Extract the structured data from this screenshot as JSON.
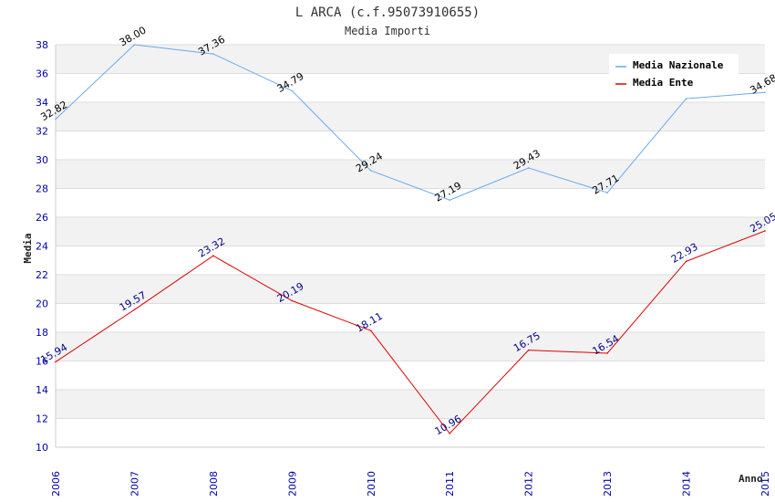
{
  "chart_data": {
    "type": "line",
    "title": "L ARCA (c.f.95073910655)",
    "subtitle": "Media Importi",
    "xlabel": "Anno",
    "ylabel": "Media",
    "categories": [
      "2006",
      "2007",
      "2008",
      "2009",
      "2010",
      "2011",
      "2012",
      "2013",
      "2014",
      "2015"
    ],
    "ylim": [
      10,
      38
    ],
    "yticks": [
      10,
      12,
      14,
      16,
      18,
      20,
      22,
      24,
      26,
      28,
      30,
      32,
      34,
      36,
      38
    ],
    "grid": true,
    "legend_position": "top-right",
    "series": [
      {
        "name": "Media Nazionale",
        "color": "#66aaee",
        "label_color": "#000000",
        "values": [
          32.82,
          38.0,
          37.36,
          34.79,
          29.24,
          27.19,
          29.43,
          27.71,
          34.25,
          34.68
        ],
        "labels": [
          "32.82",
          "38.00",
          "37.36",
          "34.79",
          "29.24",
          "27.19",
          "29.43",
          "27.71",
          "",
          "34.68"
        ]
      },
      {
        "name": "Media Ente",
        "color": "#dd0000",
        "label_color": "#000088",
        "values": [
          15.94,
          19.57,
          23.32,
          20.19,
          18.11,
          10.96,
          16.75,
          16.54,
          22.93,
          25.05
        ],
        "labels": [
          "15.94",
          "19.57",
          "23.32",
          "20.19",
          "18.11",
          "10.96",
          "16.75",
          "16.54",
          "22.93",
          "25.05"
        ]
      }
    ]
  }
}
